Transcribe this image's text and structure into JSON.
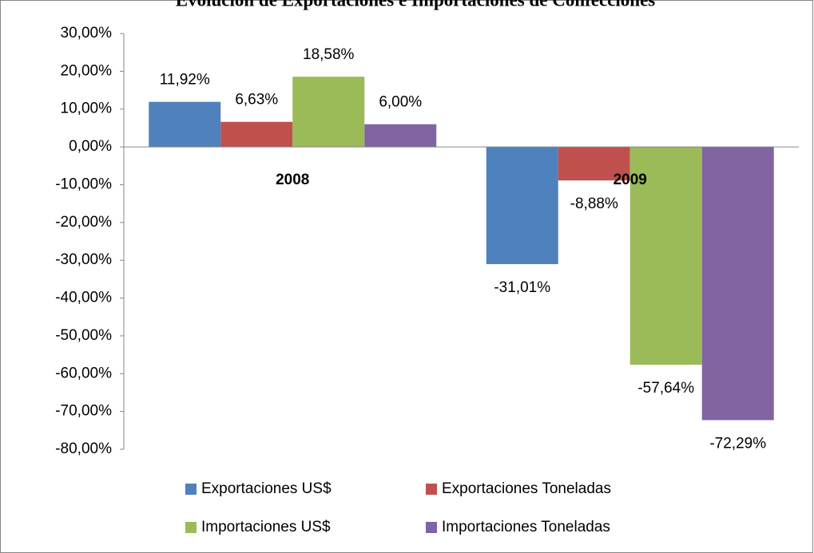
{
  "chart_data": {
    "type": "bar",
    "title": "Evolución de Exportaciones e Importaciones de Confecciones",
    "categories": [
      "2008",
      "2009"
    ],
    "series": [
      {
        "name": "Exportaciones US$",
        "color": "#4f81bd",
        "values": [
          11.92,
          -31.01
        ],
        "value_labels": [
          "11,92%",
          "-31,01%"
        ]
      },
      {
        "name": "Exportaciones Toneladas",
        "color": "#c0504d",
        "values": [
          6.63,
          -8.88
        ],
        "value_labels": [
          "6,63%",
          "-8,88%"
        ]
      },
      {
        "name": "Importaciones US$",
        "color": "#9bbb59",
        "values": [
          18.58,
          -57.64
        ],
        "value_labels": [
          "18,58%",
          "-57,64%"
        ]
      },
      {
        "name": "Importaciones Toneladas",
        "color": "#8064a2",
        "values": [
          6.0,
          -72.29
        ],
        "value_labels": [
          "6,00%",
          "-72,29%"
        ]
      }
    ],
    "ylim": [
      -80,
      30
    ],
    "yticks": [
      {
        "value": 30,
        "label": "30,00%"
      },
      {
        "value": 20,
        "label": "20,00%"
      },
      {
        "value": 10,
        "label": "10,00%"
      },
      {
        "value": 0,
        "label": "0,00%"
      },
      {
        "value": -10,
        "label": "-10,00%"
      },
      {
        "value": -20,
        "label": "-20,00%"
      },
      {
        "value": -30,
        "label": "-30,00%"
      },
      {
        "value": -40,
        "label": "-40,00%"
      },
      {
        "value": -50,
        "label": "-50,00%"
      },
      {
        "value": -60,
        "label": "-60,00%"
      },
      {
        "value": -70,
        "label": "-70,00%"
      },
      {
        "value": -80,
        "label": "-80,00%"
      }
    ],
    "grid": false,
    "legend": "bottom"
  }
}
